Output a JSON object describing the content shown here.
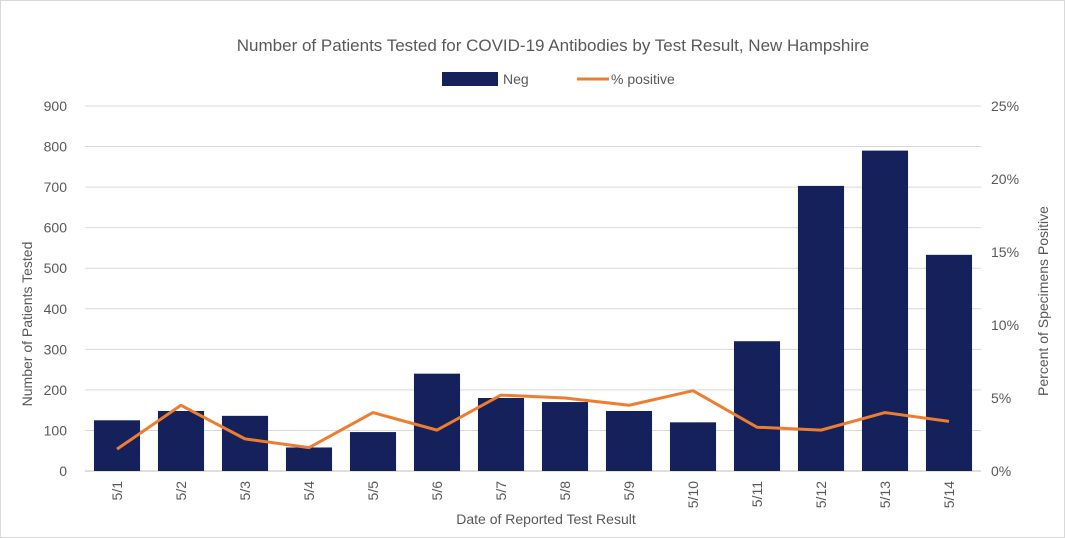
{
  "chart_data": {
    "type": "bar",
    "title": "Number of Patients Tested for COVID-19 Antibodies by Test Result, New Hampshire",
    "categories": [
      "5/1",
      "5/2",
      "5/3",
      "5/4",
      "5/5",
      "5/6",
      "5/7",
      "5/8",
      "5/9",
      "5/10",
      "5/11",
      "5/12",
      "5/13",
      "5/14"
    ],
    "series": [
      {
        "name": "Neg",
        "type": "bar",
        "axis": "left",
        "color": "#14215a",
        "values": [
          125,
          148,
          136,
          58,
          96,
          240,
          180,
          170,
          148,
          120,
          320,
          703,
          790,
          533
        ]
      },
      {
        "name": "% positive",
        "type": "line",
        "axis": "right",
        "color": "#ed7d31",
        "values": [
          1.5,
          4.5,
          2.2,
          1.6,
          4.0,
          2.8,
          5.2,
          5.0,
          4.5,
          5.5,
          3.0,
          2.8,
          4.0,
          3.4
        ]
      }
    ],
    "xlabel": "Date of Reported Test Result",
    "ylabel": "Number of Patients Tested",
    "y2label": "Percent of Specimens Positive",
    "ylim": [
      0,
      900
    ],
    "yticks": [
      "0",
      "100",
      "200",
      "300",
      "400",
      "500",
      "600",
      "700",
      "800",
      "900"
    ],
    "y2lim": [
      0,
      25
    ],
    "y2ticks": [
      "0%",
      "5%",
      "10%",
      "15%",
      "20%",
      "25%"
    ],
    "legend": "top-center",
    "grid": true
  }
}
